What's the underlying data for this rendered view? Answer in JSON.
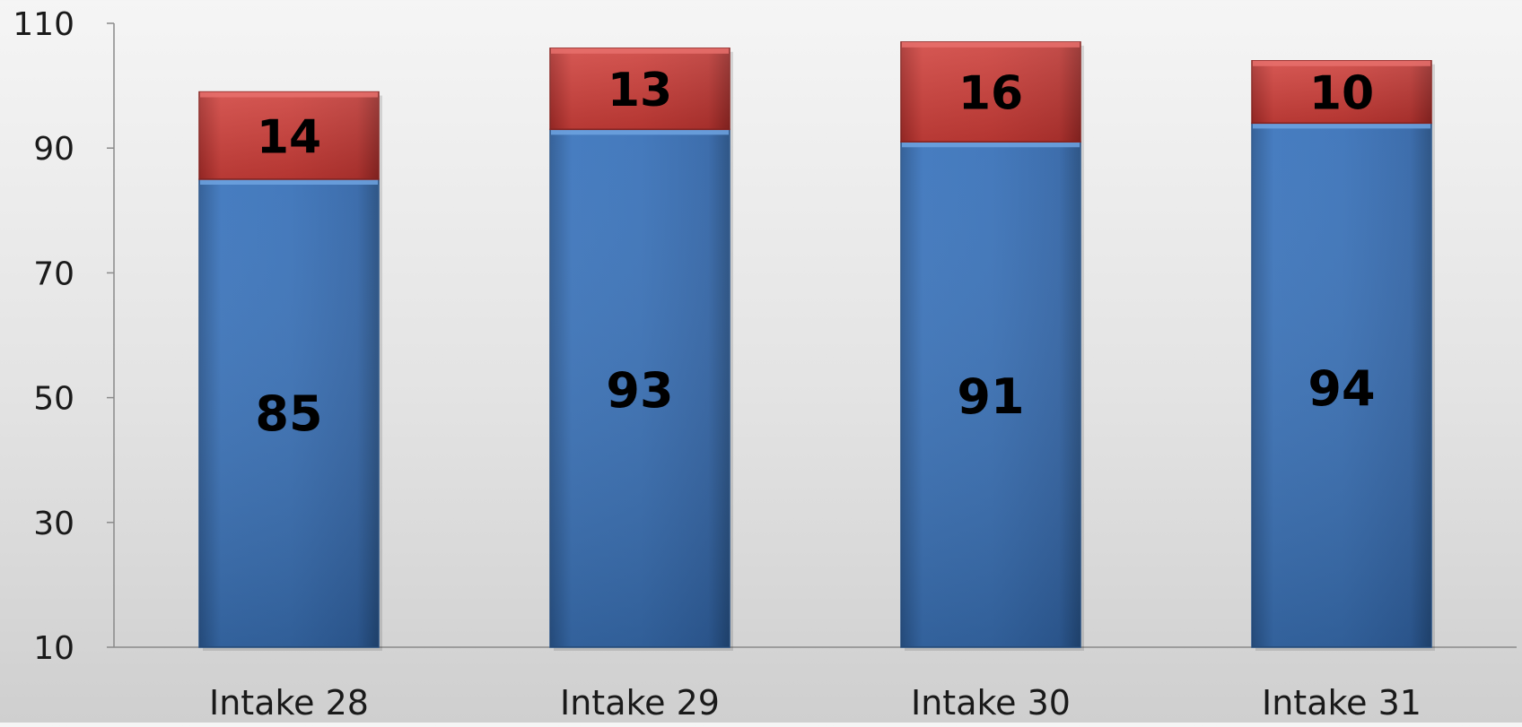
{
  "chart_data": {
    "type": "bar",
    "stacked": true,
    "categories": [
      "Intake 28",
      "Intake 29",
      "Intake 30",
      "Intake 31"
    ],
    "series": [
      {
        "values": [
          85,
          93,
          91,
          94
        ],
        "color": "#3a72b8"
      },
      {
        "values": [
          14,
          13,
          16,
          10
        ],
        "color": "#c63a36"
      }
    ],
    "yticks": [
      "10",
      "30",
      "50",
      "70",
      "90",
      "110"
    ],
    "ylim": [
      10,
      110
    ],
    "grid": false,
    "legend": "none",
    "data_labels": true
  }
}
